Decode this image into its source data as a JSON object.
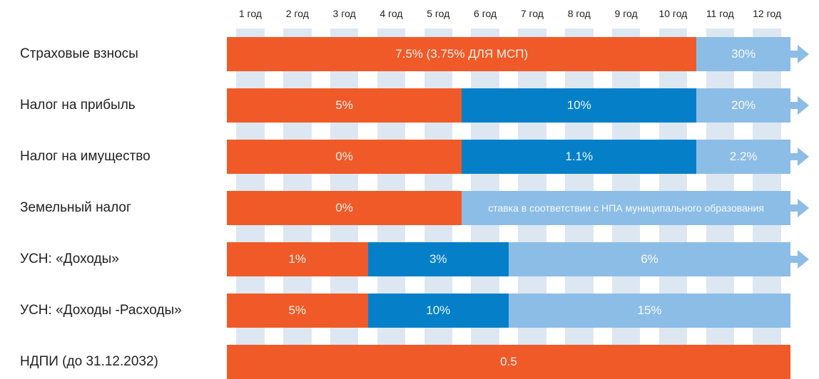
{
  "chart_data": {
    "type": "bar",
    "orientation": "horizontal-timeline",
    "x_unit": "year",
    "x_range": [
      0,
      12
    ],
    "x_ticks": [
      "1 год",
      "2 год",
      "3 год",
      "4 год",
      "5 год",
      "6 год",
      "7 год",
      "8 год",
      "9 год",
      "10 год",
      "11 год",
      "12 год"
    ],
    "colors": {
      "orange": "#f05a28",
      "blue": "#0580c8",
      "lightblue": "#8cbde6",
      "stripe": "#dde7f2"
    },
    "rows": [
      {
        "label": "Страховые взносы",
        "continues": true,
        "segments": [
          {
            "start": 0,
            "end": 10,
            "text": "7.5% (3.75% ДЛЯ МСП)",
            "color": "orange"
          },
          {
            "start": 10,
            "end": 12,
            "text": "30%",
            "color": "lightblue"
          }
        ]
      },
      {
        "label": "Налог на прибыль",
        "continues": true,
        "segments": [
          {
            "start": 0,
            "end": 5,
            "text": "5%",
            "color": "orange"
          },
          {
            "start": 5,
            "end": 10,
            "text": "10%",
            "color": "blue"
          },
          {
            "start": 10,
            "end": 12,
            "text": "20%",
            "color": "lightblue"
          }
        ]
      },
      {
        "label": "Налог на имущество",
        "continues": true,
        "segments": [
          {
            "start": 0,
            "end": 5,
            "text": "0%",
            "color": "orange"
          },
          {
            "start": 5,
            "end": 10,
            "text": "1.1%",
            "color": "blue"
          },
          {
            "start": 10,
            "end": 12,
            "text": "2.2%",
            "color": "lightblue"
          }
        ]
      },
      {
        "label": "Земельный налог",
        "continues": true,
        "segments": [
          {
            "start": 0,
            "end": 5,
            "text": "0%",
            "color": "orange"
          },
          {
            "start": 5,
            "end": 12,
            "text": "ставка в соответствии с НПА муниципального образования",
            "color": "lightblue",
            "small": true
          }
        ]
      },
      {
        "label": "УСН: «Доходы»",
        "continues": true,
        "segments": [
          {
            "start": 0,
            "end": 3,
            "text": "1%",
            "color": "orange"
          },
          {
            "start": 3,
            "end": 6,
            "text": "3%",
            "color": "blue"
          },
          {
            "start": 6,
            "end": 12,
            "text": "6%",
            "color": "lightblue"
          }
        ]
      },
      {
        "label": "УСН: «Доходы -Расходы»",
        "continues": false,
        "segments": [
          {
            "start": 0,
            "end": 3,
            "text": "5%",
            "color": "orange"
          },
          {
            "start": 3,
            "end": 6,
            "text": "10%",
            "color": "blue"
          },
          {
            "start": 6,
            "end": 12,
            "text": "15%",
            "color": "lightblue"
          }
        ]
      },
      {
        "label": "НДПИ (до 31.12.2032)",
        "continues": false,
        "segments": [
          {
            "start": 0,
            "end": 12,
            "text": "0.5",
            "color": "orange"
          }
        ]
      }
    ]
  }
}
